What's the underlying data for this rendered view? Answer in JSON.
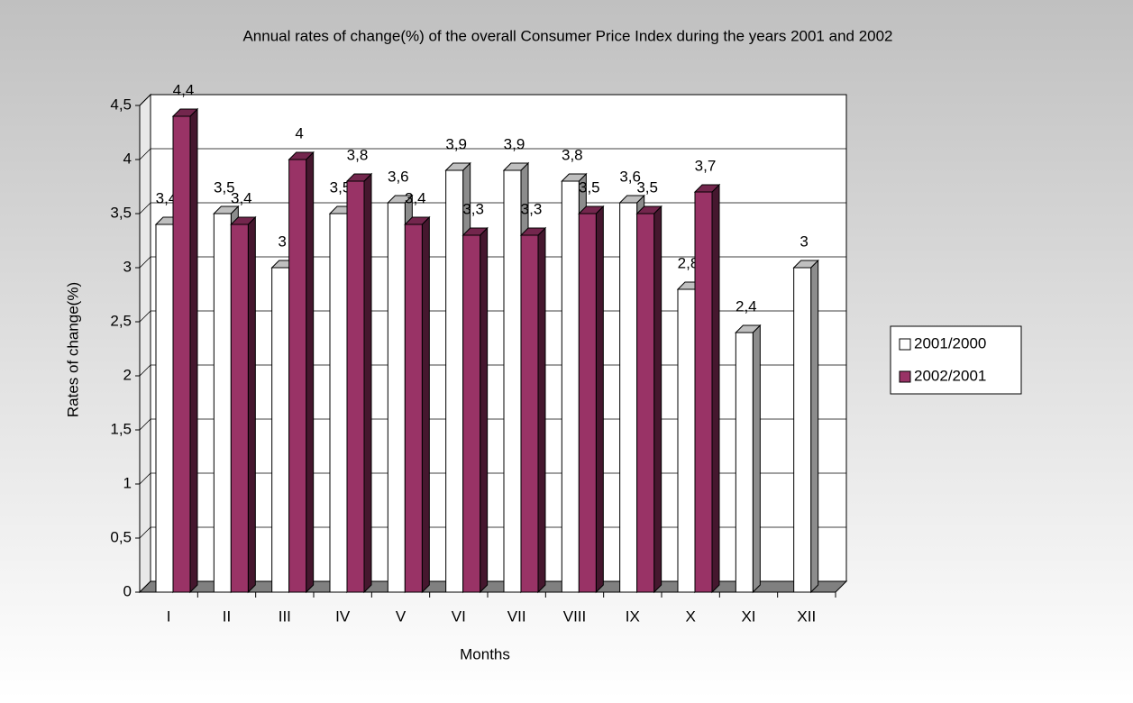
{
  "chart_data": {
    "type": "bar3d",
    "title": "Annual rates of change(%) of the overall Consumer Price Index during the years 2001 and 2002",
    "x_label": "Months",
    "y_label": "Rates of change(%)",
    "categories": [
      "I",
      "II",
      "III",
      "IV",
      "V",
      "VI",
      "VII",
      "VIII",
      "IX",
      "X",
      "XI",
      "XII"
    ],
    "series": [
      {
        "name": "2001/2000",
        "color": "#ffffff",
        "values": [
          3.4,
          3.5,
          3.0,
          3.5,
          3.6,
          3.9,
          3.9,
          3.8,
          3.6,
          2.8,
          2.4,
          3.0
        ],
        "value_labels": [
          "3,4",
          "3,5",
          "3",
          "3,5",
          "3,6",
          "3,9",
          "3,9",
          "3,8",
          "3,6",
          "2,8",
          "2,4",
          "3"
        ]
      },
      {
        "name": "2002/2001",
        "color": "#993366",
        "values": [
          4.4,
          3.4,
          4.0,
          3.8,
          3.4,
          3.3,
          3.3,
          3.5,
          3.5,
          3.7,
          null,
          null
        ],
        "value_labels": [
          "4,4",
          "3,4",
          "4",
          "3,8",
          "3,4",
          "3,3",
          "3,3",
          "3,5",
          "3,5",
          "3,7",
          null,
          null
        ]
      }
    ],
    "ylim": [
      0,
      4.5
    ],
    "yticks": [
      0,
      {
        "value": 0.5,
        "label": "0,5"
      },
      1,
      {
        "value": 1.5,
        "label": "1,5"
      },
      2,
      {
        "value": 2.5,
        "label": "2,5"
      },
      3,
      {
        "value": 3.5,
        "label": "3,5"
      },
      4,
      {
        "value": 4.5,
        "label": "4,5"
      }
    ],
    "grid": true,
    "legend": "right"
  }
}
